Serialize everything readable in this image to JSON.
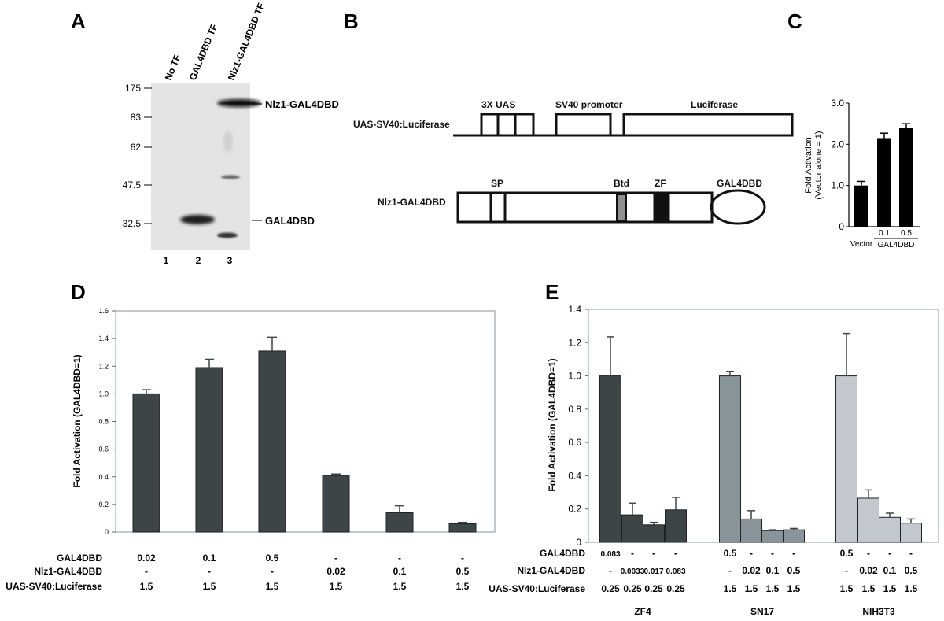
{
  "panels": {
    "a": "A",
    "b": "B",
    "c": "C",
    "d": "D",
    "e": "E"
  },
  "panel_a": {
    "lanes": [
      "No TF",
      "GAL4DBD TF",
      "Nlz1-GAL4DBD TF"
    ],
    "lane_numbers": [
      "1",
      "2",
      "3"
    ],
    "markers": [
      "175",
      "83",
      "62",
      "47.5",
      "32.5"
    ],
    "band_labels": [
      "Nlz1-GAL4DBD",
      "GAL4DBD"
    ]
  },
  "panel_b": {
    "reporter_label": "UAS-SV40:Luciferase",
    "reporter_parts": [
      "3X UAS",
      "SV40 promoter",
      "Luciferase"
    ],
    "fusion_label": "Nlz1-GAL4DBD",
    "fusion_parts": [
      "SP",
      "Btd",
      "ZF",
      "GAL4DBD"
    ]
  },
  "colors": {
    "dark": "#3d4547",
    "mid": "#89939a",
    "light": "#c2c8ce",
    "black": "#000000",
    "blot": "#e4e4e4"
  },
  "chart_data": [
    {
      "id": "C",
      "type": "bar",
      "categories": [
        "Vector",
        "0.1",
        "0.5"
      ],
      "group_label": "GAL4DBD",
      "values": [
        1.0,
        2.15,
        2.4
      ],
      "errors": [
        0.1,
        0.12,
        0.1
      ],
      "ylabel": [
        "Fold Activation",
        "(Vector alone = 1)"
      ],
      "ylim": [
        0,
        3.0
      ],
      "yticks": [
        "0",
        "1.0",
        "2.0",
        "3.0"
      ]
    },
    {
      "id": "D",
      "type": "bar",
      "values": [
        1.0,
        1.19,
        1.31,
        0.41,
        0.14,
        0.06
      ],
      "errors": [
        0.03,
        0.06,
        0.1,
        0.01,
        0.05,
        0.01
      ],
      "ylabel": "Fold Activation (GAL4DBD=1)",
      "ylim": [
        0,
        1.6
      ],
      "yticks": [
        "0",
        "0.2",
        "0.4",
        "0.6",
        "0.8",
        "1.0",
        "1.2",
        "1.4",
        "1.6"
      ],
      "table": [
        {
          "label": "GAL4DBD",
          "values": [
            "0.02",
            "0.1",
            "0.5",
            "-",
            "-",
            "-"
          ]
        },
        {
          "label": "Nlz1-GAL4DBD",
          "values": [
            "-",
            "-",
            "-",
            "0.02",
            "0.1",
            "0.5"
          ]
        },
        {
          "label": "UAS-SV40:Luciferase",
          "values": [
            "1.5",
            "1.5",
            "1.5",
            "1.5",
            "1.5",
            "1.5"
          ]
        }
      ]
    },
    {
      "id": "E",
      "type": "bar",
      "groups": [
        "ZF4",
        "SN17",
        "NIH3T3"
      ],
      "values": [
        [
          1.0,
          0.165,
          0.105,
          0.195
        ],
        [
          1.0,
          0.14,
          0.07,
          0.075
        ],
        [
          1.0,
          0.265,
          0.15,
          0.115
        ]
      ],
      "errors": [
        [
          0.235,
          0.07,
          0.015,
          0.075
        ],
        [
          0.025,
          0.05,
          0.005,
          0.008
        ],
        [
          0.255,
          0.05,
          0.025,
          0.025
        ]
      ],
      "ylabel": "Fold Activation (GAL4DBD=1)",
      "ylim": [
        0,
        1.4
      ],
      "yticks": [
        "0",
        "0.2",
        "0.4",
        "0.6",
        "0.8",
        "1.0",
        "1.2",
        "1.4"
      ],
      "table": [
        {
          "label": "GAL4DBD",
          "values": [
            [
              "0.083",
              "-",
              "-",
              "-"
            ],
            [
              "0.5",
              "-",
              "-",
              "-"
            ],
            [
              "0.5",
              "-",
              "-",
              "-"
            ]
          ]
        },
        {
          "label": "Nlz1-GAL4DBD",
          "values": [
            [
              "-",
              "0.0033",
              "0.017",
              "0.083"
            ],
            [
              "-",
              "0.02",
              "0.1",
              "0.5"
            ],
            [
              "-",
              "0.02",
              "0.1",
              "0.5"
            ]
          ]
        },
        {
          "label": "UAS-SV40:Luciferase",
          "values": [
            [
              "0.25",
              "0.25",
              "0.25",
              "0.25"
            ],
            [
              "1.5",
              "1.5",
              "1.5",
              "1.5"
            ],
            [
              "1.5",
              "1.5",
              "1.5",
              "1.5"
            ]
          ]
        }
      ]
    }
  ]
}
